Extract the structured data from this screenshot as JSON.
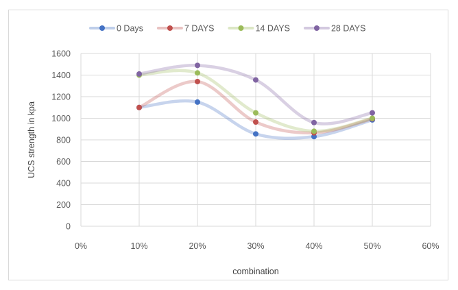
{
  "chart_data": {
    "type": "line",
    "title": "",
    "xlabel": "combination",
    "ylabel": "UCS strength in kpa",
    "x_ticks": [
      "0%",
      "10%",
      "20%",
      "30%",
      "40%",
      "50%",
      "60%"
    ],
    "y_ticks": [
      "0",
      "200",
      "400",
      "600",
      "800",
      "1000",
      "1200",
      "1400",
      "1600"
    ],
    "xlim": [
      0,
      60
    ],
    "ylim": [
      0,
      1600
    ],
    "x": [
      10,
      20,
      30,
      40,
      50
    ],
    "grid": true,
    "legend_position": "top",
    "smooth": true,
    "series": [
      {
        "name": "0 Days",
        "color": "#4472C4",
        "values": [
          1100,
          1150,
          855,
          830,
          985
        ]
      },
      {
        "name": "7 DAYS",
        "color": "#C0504D",
        "values": [
          1100,
          1340,
          965,
          865,
          995
        ]
      },
      {
        "name": "14 DAYS",
        "color": "#9BBB59",
        "values": [
          1400,
          1420,
          1050,
          880,
          1000
        ]
      },
      {
        "name": "28 DAYS",
        "color": "#8064A2",
        "values": [
          1410,
          1490,
          1355,
          960,
          1050
        ]
      }
    ]
  }
}
